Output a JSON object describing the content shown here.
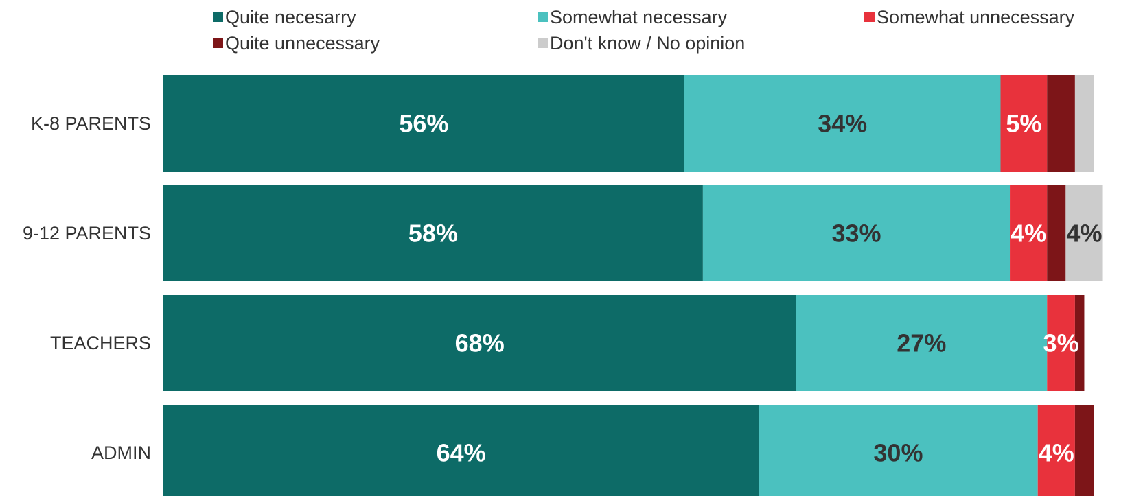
{
  "chart_data": {
    "type": "bar",
    "orientation": "horizontal",
    "stacked": true,
    "grid": false,
    "legend_position": "top",
    "categories": [
      "K-8 PARENTS",
      "9-12 PARENTS",
      "TEACHERS",
      "ADMIN"
    ],
    "series": [
      {
        "name": "Quite necesarry",
        "color": "#0d6b67",
        "label_color": "#ffffff",
        "values": [
          56,
          58,
          68,
          64
        ],
        "labels": [
          "56%",
          "58%",
          "68%",
          "64%"
        ]
      },
      {
        "name": "Somewhat necessary",
        "color": "#4bc1bf",
        "label_color": "#333333",
        "values": [
          34,
          33,
          27,
          30
        ],
        "labels": [
          "34%",
          "33%",
          "27%",
          "30%"
        ]
      },
      {
        "name": "Somewhat unnecessary",
        "color": "#e8323c",
        "label_color": "#ffffff",
        "values": [
          5,
          4,
          3,
          4
        ],
        "labels": [
          "5%",
          "4%",
          "3%",
          "4%"
        ]
      },
      {
        "name": "Quite unnecessary",
        "color": "#7d1518",
        "label_color": "#ffffff",
        "values": [
          3,
          2,
          1,
          2
        ],
        "labels": [
          "",
          "",
          "",
          ""
        ]
      },
      {
        "name": "Don't know / No opinion",
        "color": "#cccccc",
        "label_color": "#333333",
        "values": [
          2,
          4,
          0,
          0
        ],
        "labels": [
          "",
          "4%",
          "",
          ""
        ]
      }
    ]
  }
}
